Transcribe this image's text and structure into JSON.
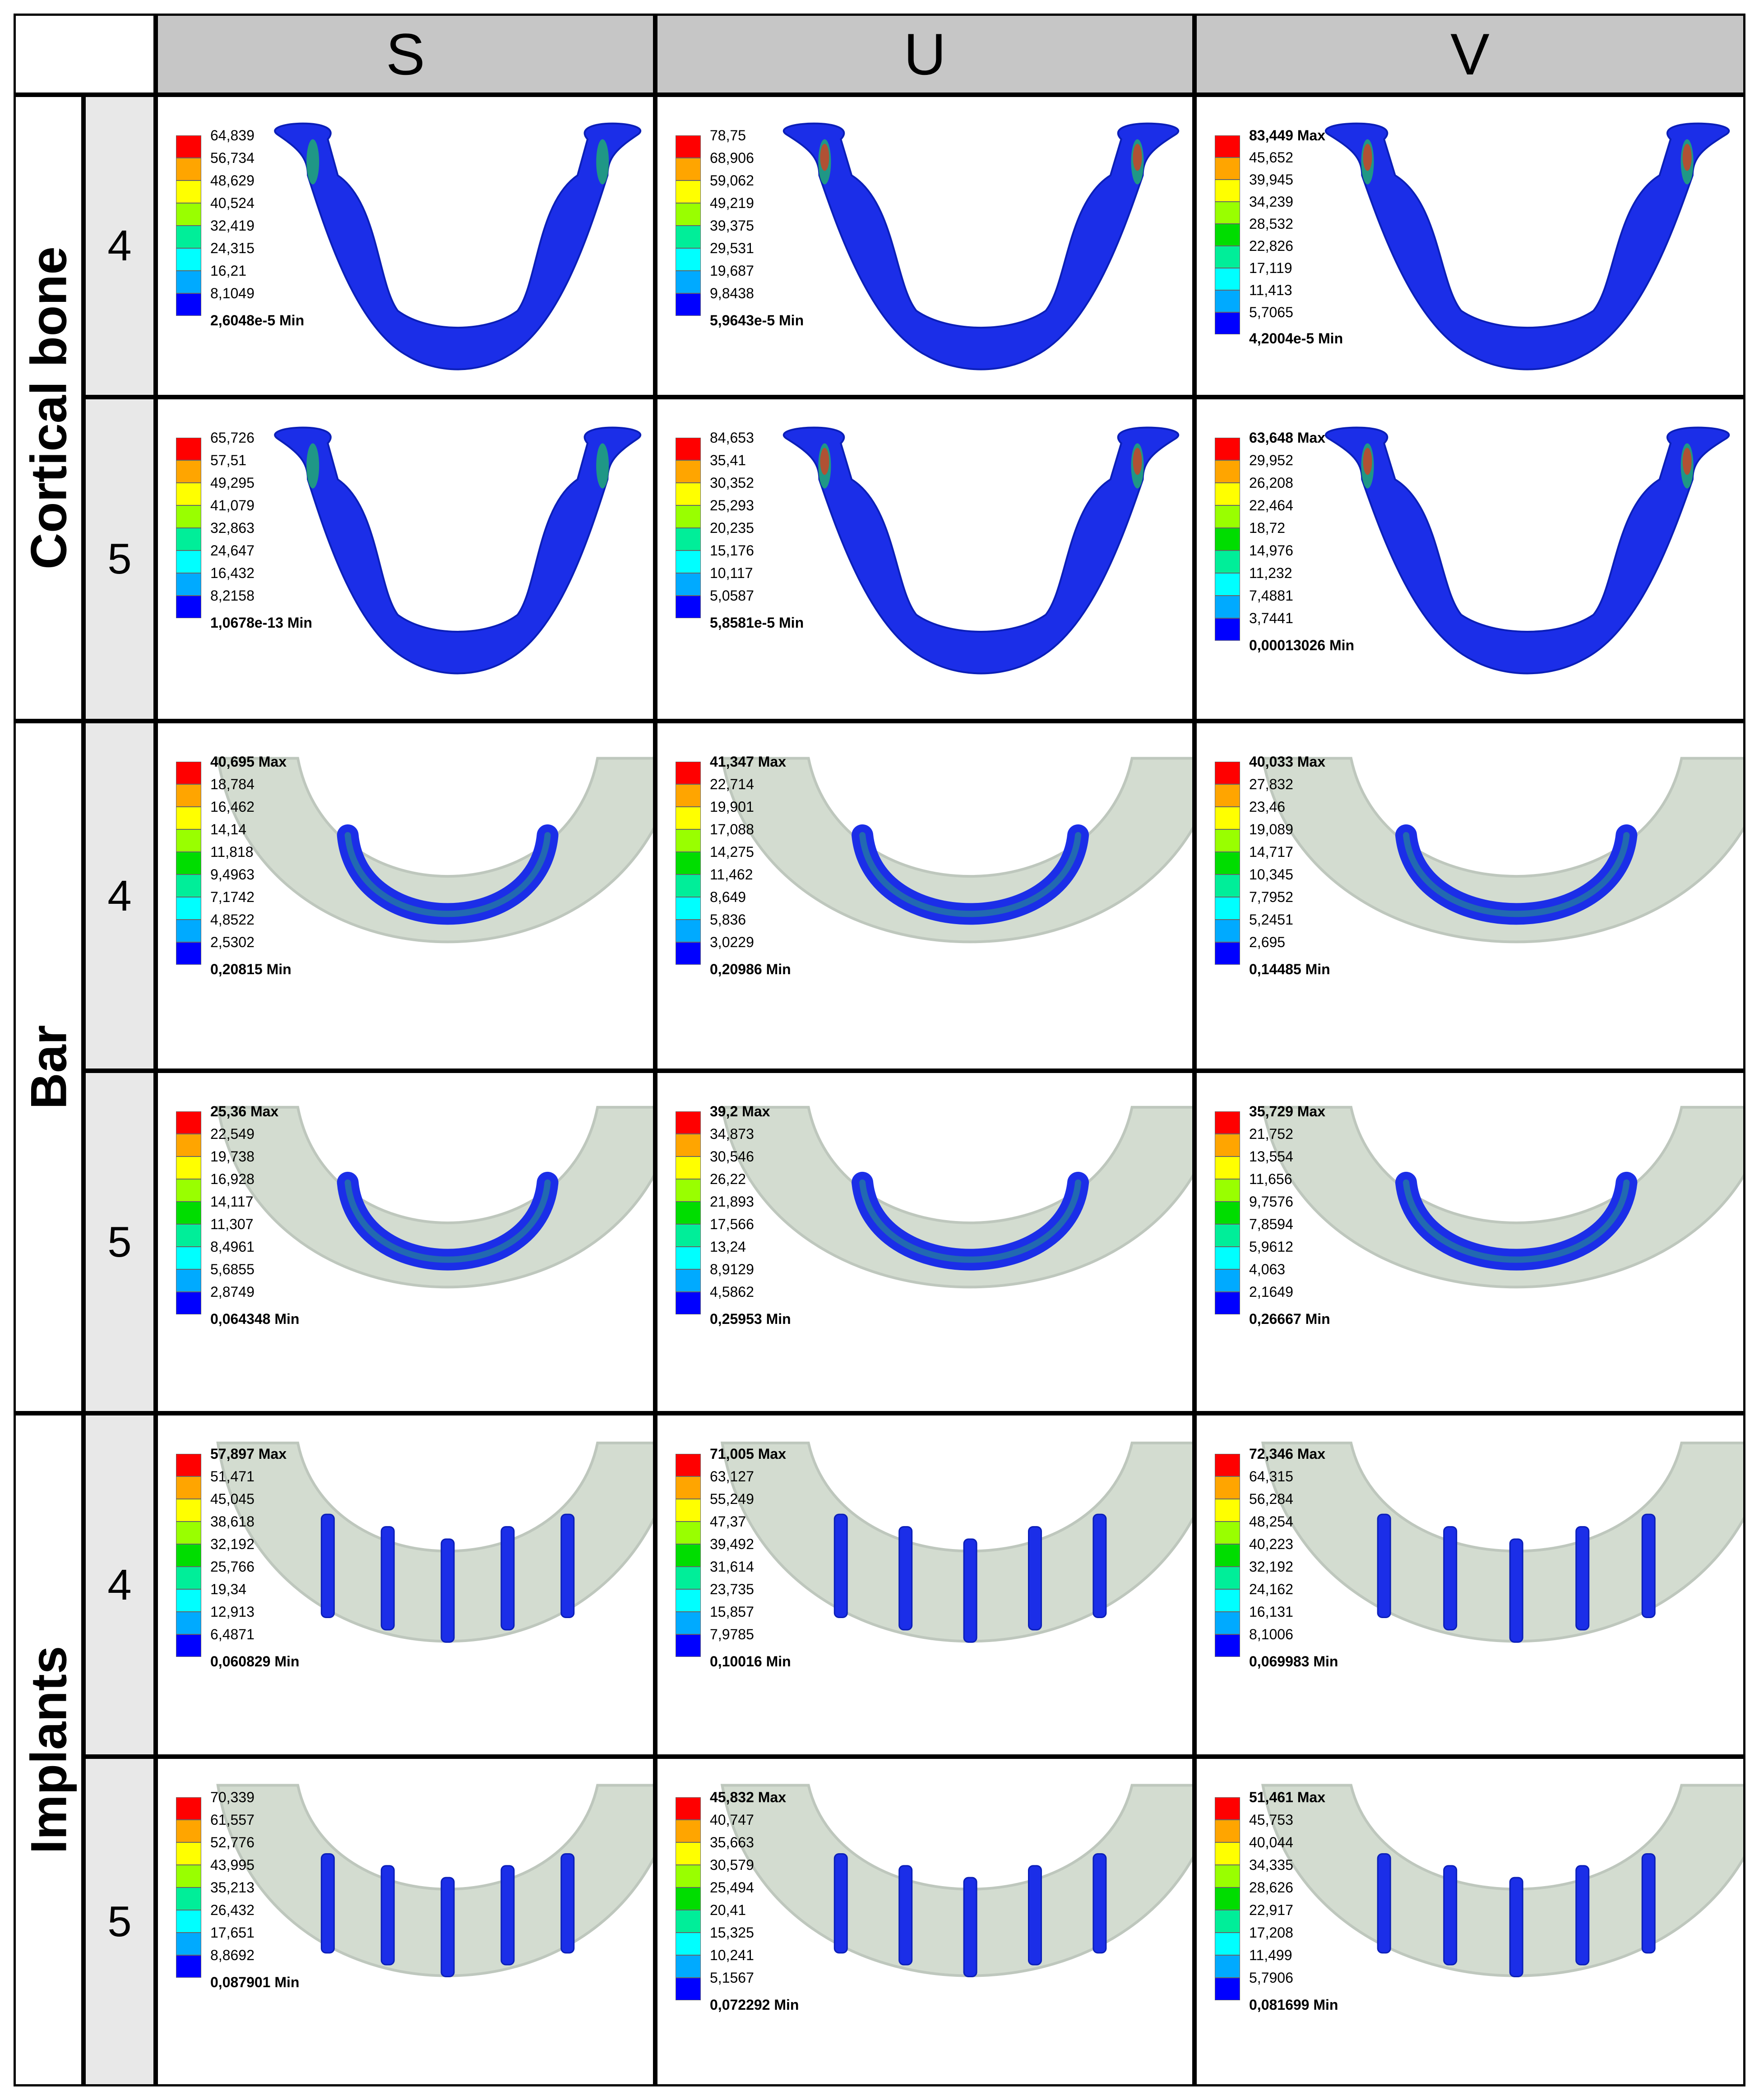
{
  "columns": [
    "S",
    "U",
    "V"
  ],
  "rows": [
    {
      "group": "Cortical bone",
      "subs": [
        "4",
        "5"
      ]
    },
    {
      "group": "Bar",
      "subs": [
        "4",
        "5"
      ]
    },
    {
      "group": "Implants",
      "subs": [
        "4",
        "5"
      ]
    }
  ],
  "colors": {
    "scale": [
      "#ff0000",
      "#ffa500",
      "#ffff00",
      "#99ff00",
      "#00dd00",
      "#00ee99",
      "#00ffff",
      "#00aaff",
      "#0000ff"
    ],
    "bone_blue": "#1b2ee8",
    "translucent_jaw": "#cfd9cc",
    "header_gray": "#c6c6c6",
    "sub_gray": "#e8e8e8"
  },
  "cells": [
    {
      "type": "bone",
      "labels": [
        "64,839",
        "56,734",
        "48,629",
        "40,524",
        "32,419",
        "24,315",
        "16,21",
        "8,1049",
        "2,6048e-5 Min"
      ]
    },
    {
      "type": "bone",
      "labels": [
        "78,75",
        "68,906",
        "59,062",
        "49,219",
        "39,375",
        "29,531",
        "19,687",
        "9,8438",
        "5,9643e-5 Min"
      ]
    },
    {
      "type": "bone",
      "labels": [
        "83,449 Max",
        "45,652",
        "39,945",
        "34,239",
        "28,532",
        "22,826",
        "17,119",
        "11,413",
        "5,7065",
        "4,2004e-5 Min"
      ]
    },
    {
      "type": "bone",
      "labels": [
        "65,726",
        "57,51",
        "49,295",
        "41,079",
        "32,863",
        "24,647",
        "16,432",
        "8,2158",
        "1,0678e-13 Min"
      ]
    },
    {
      "type": "bone",
      "labels": [
        "84,653",
        "35,41",
        "30,352",
        "25,293",
        "20,235",
        "15,176",
        "10,117",
        "5,0587",
        "5,8581e-5 Min"
      ]
    },
    {
      "type": "bone",
      "labels": [
        "63,648 Max",
        "29,952",
        "26,208",
        "22,464",
        "18,72",
        "14,976",
        "11,232",
        "7,4881",
        "3,7441",
        "0,00013026 Min"
      ]
    },
    {
      "type": "bar",
      "labels": [
        "40,695 Max",
        "18,784",
        "16,462",
        "14,14",
        "11,818",
        "9,4963",
        "7,1742",
        "4,8522",
        "2,5302",
        "0,20815 Min"
      ]
    },
    {
      "type": "bar",
      "labels": [
        "41,347 Max",
        "22,714",
        "19,901",
        "17,088",
        "14,275",
        "11,462",
        "8,649",
        "5,836",
        "3,0229",
        "0,20986 Min"
      ]
    },
    {
      "type": "bar",
      "labels": [
        "40,033 Max",
        "27,832",
        "23,46",
        "19,089",
        "14,717",
        "10,345",
        "7,7952",
        "5,2451",
        "2,695",
        "0,14485 Min"
      ]
    },
    {
      "type": "bar",
      "labels": [
        "25,36 Max",
        "22,549",
        "19,738",
        "16,928",
        "14,117",
        "11,307",
        "8,4961",
        "5,6855",
        "2,8749",
        "0,064348 Min"
      ]
    },
    {
      "type": "bar",
      "labels": [
        "39,2 Max",
        "34,873",
        "30,546",
        "26,22",
        "21,893",
        "17,566",
        "13,24",
        "8,9129",
        "4,5862",
        "0,25953 Min"
      ]
    },
    {
      "type": "bar",
      "labels": [
        "35,729 Max",
        "21,752",
        "13,554",
        "11,656",
        "9,7576",
        "7,8594",
        "5,9612",
        "4,063",
        "2,1649",
        "0,26667 Min"
      ]
    },
    {
      "type": "implant",
      "labels": [
        "57,897 Max",
        "51,471",
        "45,045",
        "38,618",
        "32,192",
        "25,766",
        "19,34",
        "12,913",
        "6,4871",
        "0,060829 Min"
      ]
    },
    {
      "type": "implant",
      "labels": [
        "71,005 Max",
        "63,127",
        "55,249",
        "47,37",
        "39,492",
        "31,614",
        "23,735",
        "15,857",
        "7,9785",
        "0,10016 Min"
      ]
    },
    {
      "type": "implant",
      "labels": [
        "72,346 Max",
        "64,315",
        "56,284",
        "48,254",
        "40,223",
        "32,192",
        "24,162",
        "16,131",
        "8,1006",
        "0,069983 Min"
      ]
    },
    {
      "type": "implant",
      "labels": [
        "70,339",
        "61,557",
        "52,776",
        "43,995",
        "35,213",
        "26,432",
        "17,651",
        "8,8692",
        "0,087901 Min"
      ]
    },
    {
      "type": "implant",
      "labels": [
        "45,832 Max",
        "40,747",
        "35,663",
        "30,579",
        "25,494",
        "20,41",
        "15,325",
        "10,241",
        "5,1567",
        "0,072292 Min"
      ]
    },
    {
      "type": "implant",
      "labels": [
        "51,461 Max",
        "45,753",
        "40,044",
        "34,335",
        "28,626",
        "22,917",
        "17,208",
        "11,499",
        "5,7906",
        "0,081699 Min"
      ]
    }
  ]
}
